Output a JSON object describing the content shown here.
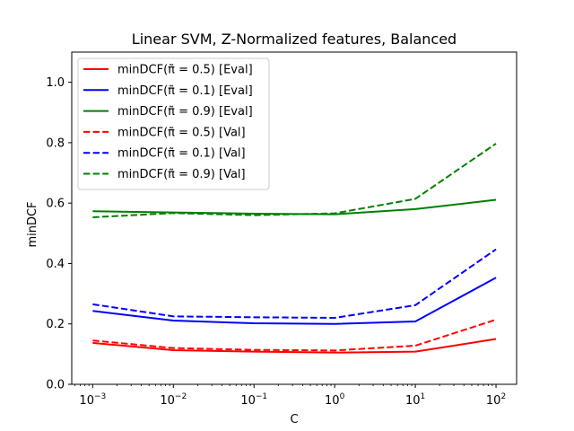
{
  "chart_data": {
    "type": "line",
    "title": "Linear SVM, Z-Normalized features, Balanced",
    "xlabel": "C",
    "ylabel": "minDCF",
    "xscale": "log",
    "x": [
      0.001,
      0.01,
      0.1,
      1,
      10,
      100
    ],
    "xticks": [
      {
        "value": 0.001,
        "base": "10",
        "exp": "−3"
      },
      {
        "value": 0.01,
        "base": "10",
        "exp": "−2"
      },
      {
        "value": 0.1,
        "base": "10",
        "exp": "−1"
      },
      {
        "value": 1,
        "base": "10",
        "exp": "0"
      },
      {
        "value": 10,
        "base": "10",
        "exp": "1"
      },
      {
        "value": 100,
        "base": "10",
        "exp": "2"
      }
    ],
    "xlim": [
      0.00055,
      180
    ],
    "ylim": [
      0.0,
      1.1
    ],
    "yticks": [
      0.0,
      0.2,
      0.4,
      0.6,
      0.8,
      1.0
    ],
    "ytick_labels": [
      "0.0",
      "0.2",
      "0.4",
      "0.6",
      "0.8",
      "1.0"
    ],
    "grid": false,
    "legend_position": "top-left",
    "series": [
      {
        "name": "minDCF(π̃ = 0.5) [Eval]",
        "color": "#ff0000",
        "dash": "solid",
        "values": [
          0.137,
          0.113,
          0.108,
          0.105,
          0.108,
          0.15
        ]
      },
      {
        "name": "minDCF(π̃ = 0.1) [Eval]",
        "color": "#0000ff",
        "dash": "solid",
        "values": [
          0.243,
          0.211,
          0.202,
          0.2,
          0.208,
          0.353
        ]
      },
      {
        "name": "minDCF(π̃ = 0.9) [Eval]",
        "color": "#008000",
        "dash": "solid",
        "values": [
          0.573,
          0.569,
          0.565,
          0.563,
          0.58,
          0.611
        ]
      },
      {
        "name": "minDCF(π̃ = 0.5) [Val]",
        "color": "#ff0000",
        "dash": "dashed",
        "values": [
          0.145,
          0.12,
          0.114,
          0.112,
          0.128,
          0.214
        ]
      },
      {
        "name": "minDCF(π̃ = 0.1) [Val]",
        "color": "#0000ff",
        "dash": "dashed",
        "values": [
          0.265,
          0.225,
          0.222,
          0.22,
          0.262,
          0.447
        ]
      },
      {
        "name": "minDCF(π̃ = 0.9) [Val]",
        "color": "#008000",
        "dash": "dashed",
        "values": [
          0.553,
          0.567,
          0.56,
          0.566,
          0.614,
          0.797
        ]
      }
    ]
  }
}
